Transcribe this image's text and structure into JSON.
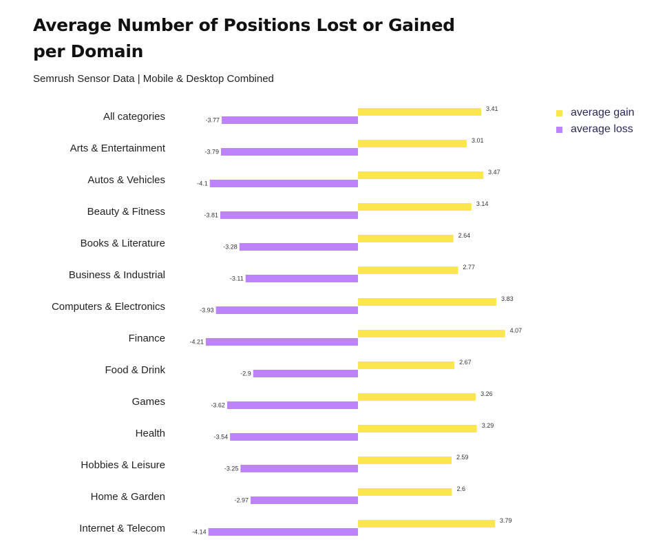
{
  "chart_data": {
    "type": "bar",
    "orientation": "horizontal",
    "title": "Average Number of Positions Lost or Gained per Domain",
    "subtitle": "Semrush Sensor Data | Mobile & Desktop Combined",
    "categories": [
      "All categories",
      "Arts & Entertainment",
      "Autos & Vehicles",
      "Beauty & Fitness",
      "Books & Literature",
      "Business & Industrial",
      "Computers & Electronics",
      "Finance",
      "Food & Drink",
      "Games",
      "Health",
      "Hobbies & Leisure",
      "Home & Garden",
      "Internet & Telecom"
    ],
    "series": [
      {
        "name": "average gain",
        "color": "#fbe64d",
        "values": [
          3.41,
          3.01,
          3.47,
          3.14,
          2.64,
          2.77,
          3.83,
          4.07,
          2.67,
          3.26,
          3.29,
          2.59,
          2.6,
          3.79
        ],
        "labels": [
          "3.41",
          "3.01",
          "3.47",
          "3.14",
          "2.64",
          "2.77",
          "3.83",
          "4.07",
          "2.67",
          "3.26",
          "3.29",
          "2.59",
          "2.6",
          "3.79"
        ]
      },
      {
        "name": "average loss",
        "color": "#bd83fb",
        "values": [
          -3.77,
          -3.79,
          -4.1,
          -3.81,
          -3.28,
          -3.11,
          -3.93,
          -4.21,
          -2.9,
          -3.62,
          -3.54,
          -3.25,
          -2.97,
          -4.14
        ],
        "labels": [
          "-3.77",
          "-3.79",
          "-4.1",
          "-3.81",
          "-3.28",
          "-3.11",
          "-3.93",
          "-4.21",
          "-2.9",
          "-3.62",
          "-3.54",
          "-3.25",
          "-2.97",
          "-4.14"
        ]
      }
    ],
    "xlim": [
      -4.5,
      4.5
    ],
    "grid": false,
    "legend_position": "top-right",
    "xlabel": "",
    "ylabel": ""
  }
}
